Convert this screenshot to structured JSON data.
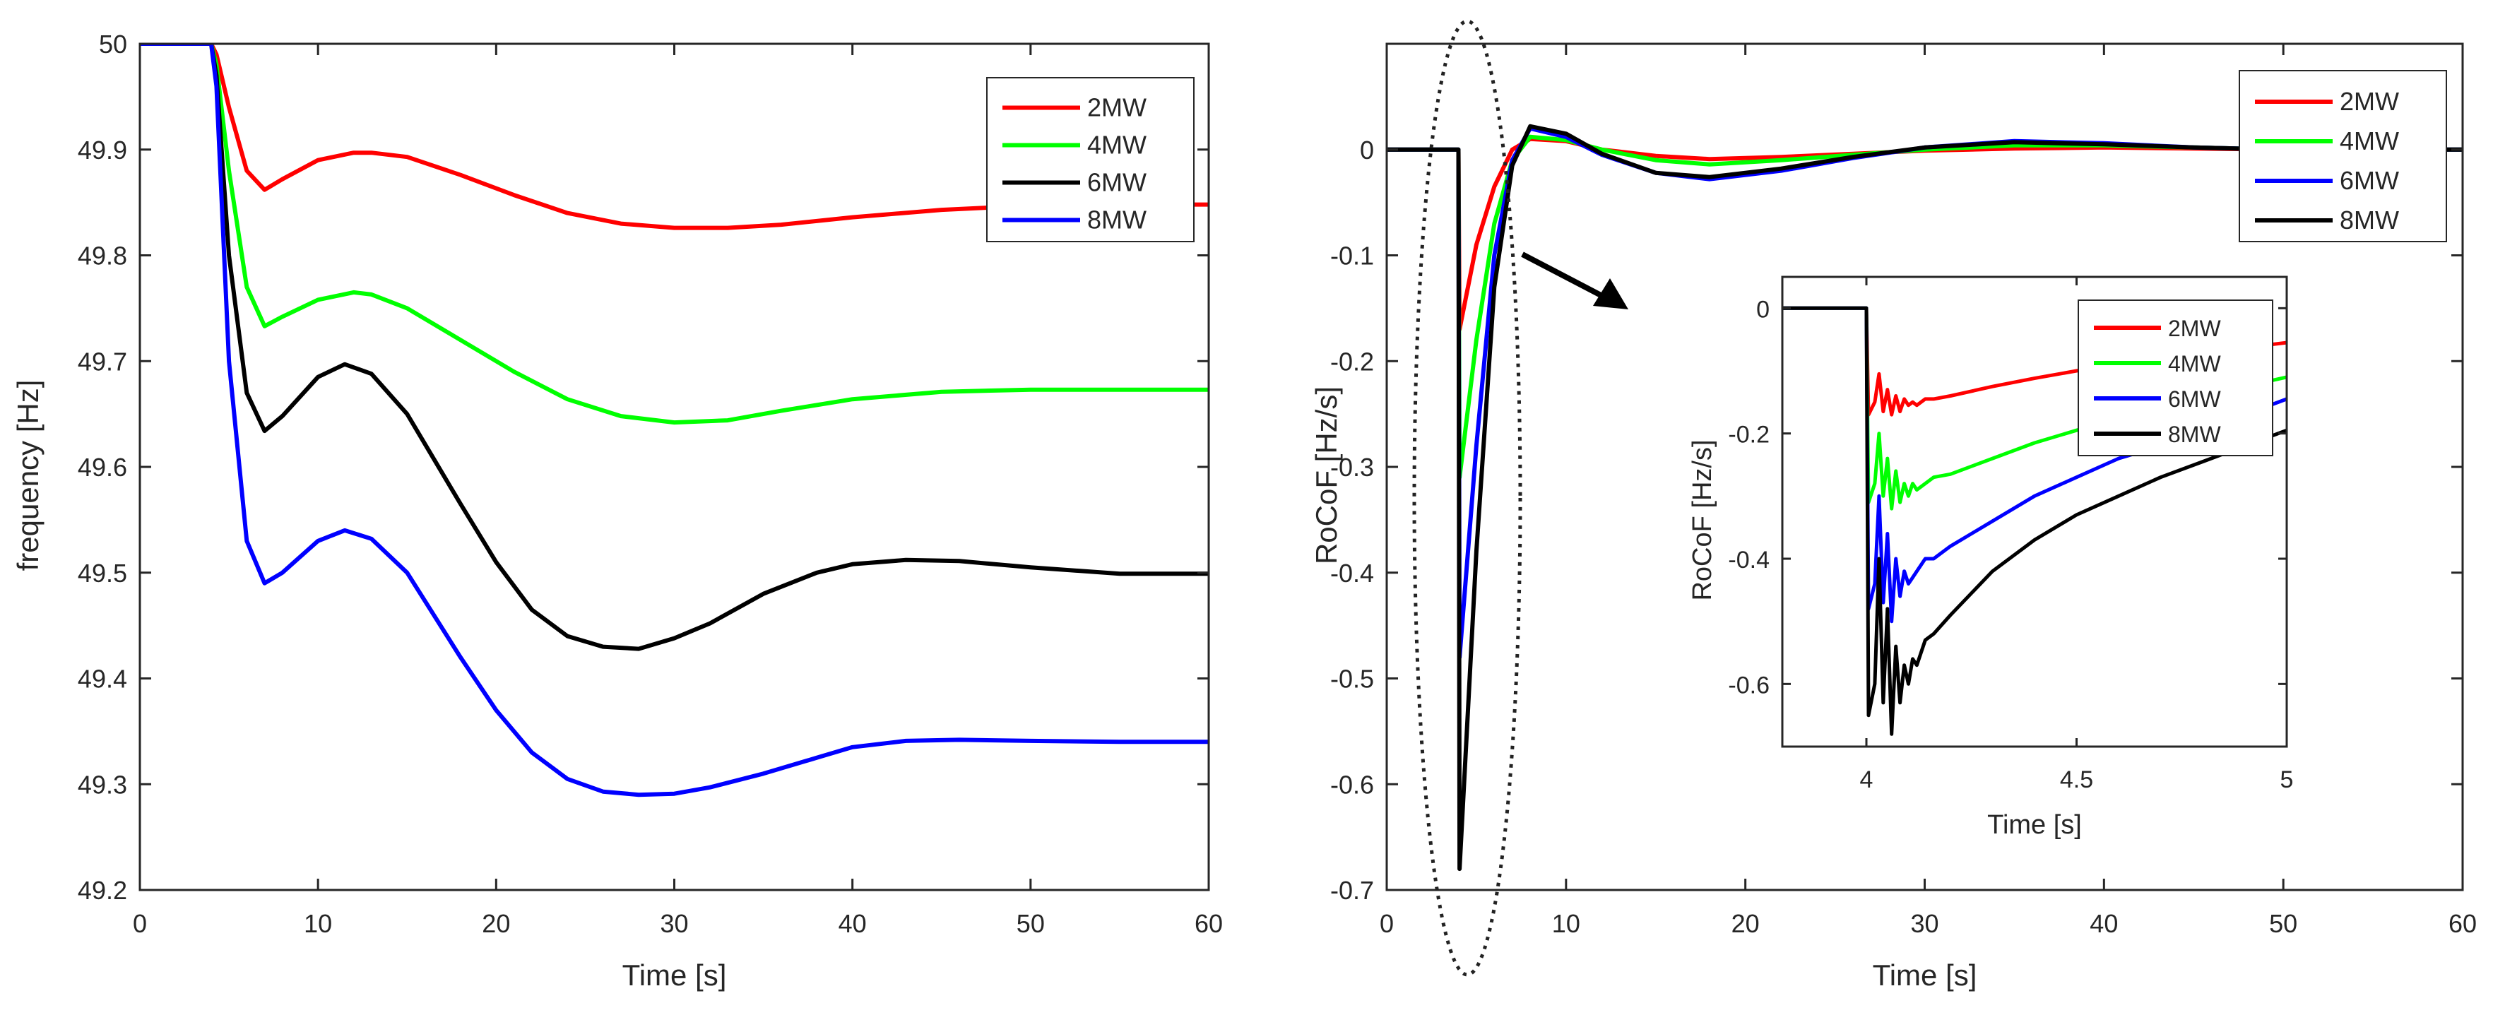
{
  "chart_data": [
    {
      "type": "line",
      "panel": "frequency",
      "xlabel": "Time [s]",
      "ylabel": "frequency [Hz]",
      "xlim": [
        0,
        60
      ],
      "ylim": [
        49.2,
        50
      ],
      "xticks": [
        0,
        10,
        20,
        30,
        40,
        50,
        60
      ],
      "xtick_labels": [
        "0",
        "10",
        "20",
        "30",
        "40",
        "50",
        "60"
      ],
      "yticks": [
        49.2,
        49.3,
        49.4,
        49.5,
        49.6,
        49.7,
        49.8,
        49.9,
        50
      ],
      "ytick_labels": [
        "49.2",
        "49.3",
        "49.4",
        "49.5",
        "49.6",
        "49.7",
        "49.8",
        "49.9",
        "50"
      ],
      "legend": "top-right",
      "grid": false,
      "series": [
        {
          "name": "2MW",
          "color": "#ff0000",
          "x": [
            0,
            4,
            4.3,
            5,
            6,
            7,
            8,
            10,
            12,
            13,
            15,
            18,
            21,
            24,
            27,
            30,
            33,
            36,
            40,
            45,
            50,
            55,
            60
          ],
          "y": [
            50,
            50,
            49.99,
            49.94,
            49.88,
            49.862,
            49.872,
            49.89,
            49.897,
            49.897,
            49.893,
            49.876,
            49.857,
            49.84,
            49.83,
            49.826,
            49.826,
            49.829,
            49.836,
            49.843,
            49.847,
            49.848,
            49.848
          ]
        },
        {
          "name": "4MW",
          "color": "#00ff00",
          "x": [
            0,
            4,
            4.3,
            5,
            6,
            7,
            8,
            10,
            12,
            13,
            15,
            18,
            21,
            24,
            27,
            30,
            33,
            36,
            40,
            45,
            50,
            55,
            60
          ],
          "y": [
            50,
            50,
            49.98,
            49.88,
            49.77,
            49.733,
            49.742,
            49.758,
            49.765,
            49.763,
            49.75,
            49.72,
            49.69,
            49.664,
            49.648,
            49.642,
            49.644,
            49.653,
            49.664,
            49.671,
            49.673,
            49.673,
            49.673
          ]
        },
        {
          "name": "6MW",
          "color": "#000000",
          "x": [
            0,
            4,
            4.3,
            5,
            6,
            7,
            8,
            10,
            11.5,
            13,
            15,
            18,
            20,
            22,
            24,
            26,
            28,
            30,
            32,
            35,
            38,
            40,
            43,
            46,
            50,
            55,
            60
          ],
          "y": [
            50,
            50,
            49.97,
            49.8,
            49.67,
            49.634,
            49.648,
            49.685,
            49.697,
            49.688,
            49.65,
            49.565,
            49.51,
            49.465,
            49.44,
            49.43,
            49.428,
            49.438,
            49.452,
            49.48,
            49.5,
            49.508,
            49.512,
            49.511,
            49.505,
            49.499,
            49.499
          ]
        },
        {
          "name": "8MW",
          "color": "#0000ff",
          "x": [
            0,
            4,
            4.3,
            5,
            6,
            7,
            8,
            10,
            11.5,
            13,
            15,
            18,
            20,
            22,
            24,
            26,
            28,
            30,
            32,
            35,
            38,
            40,
            43,
            46,
            50,
            55,
            60
          ],
          "y": [
            50,
            50,
            49.96,
            49.7,
            49.53,
            49.49,
            49.5,
            49.53,
            49.54,
            49.532,
            49.5,
            49.42,
            49.37,
            49.33,
            49.305,
            49.293,
            49.29,
            49.291,
            49.297,
            49.31,
            49.325,
            49.335,
            49.341,
            49.342,
            49.341,
            49.34,
            49.34
          ]
        }
      ]
    },
    {
      "type": "line",
      "panel": "rocof",
      "xlabel": "Time [s]",
      "ylabel": "RoCoF [Hz/s]",
      "xlim": [
        0,
        60
      ],
      "ylim": [
        -0.7,
        0.1
      ],
      "xticks": [
        0,
        10,
        20,
        30,
        40,
        50,
        60
      ],
      "xtick_labels": [
        "0",
        "10",
        "20",
        "30",
        "40",
        "50",
        "60"
      ],
      "yticks": [
        -0.7,
        -0.6,
        -0.5,
        -0.4,
        -0.3,
        -0.2,
        -0.1,
        0
      ],
      "ytick_labels": [
        "-0.7",
        "-0.6",
        "-0.5",
        "-0.4",
        "-0.3",
        "-0.2",
        "-0.1",
        "0"
      ],
      "legend": "top-right",
      "grid": false,
      "annotations": [
        "dotted ellipse around the initial RoCoF dip at t≈4 s",
        "arrow pointing to zoomed inset"
      ],
      "series": [
        {
          "name": "2MW",
          "color": "#ff0000",
          "x": [
            0,
            3.99,
            4.0,
            4.06,
            5,
            6,
            7,
            8,
            10,
            12,
            15,
            18,
            22,
            26,
            30,
            35,
            40,
            45,
            50,
            55,
            60
          ],
          "y": [
            0,
            0,
            0,
            -0.17,
            -0.09,
            -0.035,
            0,
            0.01,
            0.008,
            0.0,
            -0.006,
            -0.009,
            -0.007,
            -0.004,
            -0.001,
            0.001,
            0.002,
            0.001,
            0,
            0,
            0
          ]
        },
        {
          "name": "4MW",
          "color": "#00ff00",
          "x": [
            0,
            3.99,
            4.0,
            4.06,
            5,
            6,
            7,
            8,
            10,
            12,
            15,
            18,
            22,
            26,
            30,
            35,
            40,
            45,
            50,
            55,
            60
          ],
          "y": [
            0,
            0,
            0,
            -0.31,
            -0.18,
            -0.07,
            -0.01,
            0.012,
            0.009,
            0.0,
            -0.01,
            -0.014,
            -0.01,
            -0.005,
            0.0,
            0.004,
            0.004,
            0.002,
            0,
            0,
            0
          ]
        },
        {
          "name": "6MW",
          "color": "#0000ff",
          "x": [
            0,
            3.99,
            4.0,
            4.06,
            5,
            6,
            7,
            8,
            10,
            12,
            15,
            18,
            22,
            26,
            30,
            35,
            40,
            45,
            50,
            55,
            60
          ],
          "y": [
            0,
            0,
            0,
            -0.48,
            -0.28,
            -0.1,
            -0.01,
            0.02,
            0.012,
            -0.005,
            -0.022,
            -0.028,
            -0.02,
            -0.008,
            0.002,
            0.008,
            0.006,
            0.002,
            0,
            0,
            0
          ]
        },
        {
          "name": "8MW",
          "color": "#000000",
          "x": [
            0,
            3.99,
            4.0,
            4.06,
            5,
            6,
            7,
            8,
            10,
            12,
            15,
            18,
            22,
            26,
            30,
            35,
            40,
            45,
            50,
            55,
            60
          ],
          "y": [
            0,
            0,
            0,
            -0.68,
            -0.38,
            -0.13,
            -0.015,
            0.022,
            0.015,
            -0.004,
            -0.022,
            -0.026,
            -0.018,
            -0.007,
            0.002,
            0.007,
            0.005,
            0.002,
            0,
            0,
            0
          ]
        }
      ]
    },
    {
      "type": "line",
      "panel": "rocof-inset",
      "xlabel": "Time [s]",
      "ylabel": "RoCoF [Hz/s]",
      "xlim": [
        3.8,
        5
      ],
      "ylim": [
        -0.7,
        0.05
      ],
      "xticks": [
        4,
        4.5,
        5
      ],
      "xtick_labels": [
        "4",
        "4.5",
        "5"
      ],
      "yticks": [
        -0.6,
        -0.4,
        -0.2,
        0
      ],
      "ytick_labels": [
        "-0.6",
        "-0.4",
        "-0.2",
        "0"
      ],
      "legend": "top-right",
      "grid": false,
      "series": [
        {
          "name": "2MW",
          "color": "#ff0000",
          "x": [
            3.8,
            4.0,
            4.005,
            4.02,
            4.03,
            4.04,
            4.05,
            4.06,
            4.07,
            4.08,
            4.09,
            4.1,
            4.11,
            4.12,
            4.14,
            4.16,
            4.2,
            4.3,
            4.4,
            4.5,
            4.6,
            4.7,
            4.8,
            4.9,
            5.0
          ],
          "y": [
            0,
            0,
            -0.17,
            -0.15,
            -0.105,
            -0.165,
            -0.13,
            -0.17,
            -0.14,
            -0.165,
            -0.145,
            -0.155,
            -0.15,
            -0.155,
            -0.145,
            -0.145,
            -0.14,
            -0.125,
            -0.112,
            -0.1,
            -0.09,
            -0.08,
            -0.07,
            -0.063,
            -0.055
          ]
        },
        {
          "name": "4MW",
          "color": "#00ff00",
          "x": [
            3.8,
            4.0,
            4.005,
            4.02,
            4.03,
            4.04,
            4.05,
            4.06,
            4.07,
            4.08,
            4.09,
            4.1,
            4.11,
            4.12,
            4.14,
            4.16,
            4.2,
            4.3,
            4.4,
            4.5,
            4.6,
            4.7,
            4.8,
            4.9,
            5.0
          ],
          "y": [
            0,
            0,
            -0.31,
            -0.28,
            -0.2,
            -0.3,
            -0.24,
            -0.32,
            -0.26,
            -0.31,
            -0.28,
            -0.3,
            -0.28,
            -0.29,
            -0.28,
            -0.27,
            -0.265,
            -0.24,
            -0.215,
            -0.195,
            -0.175,
            -0.16,
            -0.14,
            -0.125,
            -0.11
          ]
        },
        {
          "name": "6MW",
          "color": "#0000ff",
          "x": [
            3.8,
            4.0,
            4.005,
            4.02,
            4.03,
            4.04,
            4.05,
            4.06,
            4.07,
            4.08,
            4.09,
            4.1,
            4.11,
            4.12,
            4.14,
            4.16,
            4.2,
            4.3,
            4.4,
            4.5,
            4.6,
            4.7,
            4.8,
            4.9,
            5.0
          ],
          "y": [
            0,
            0,
            -0.48,
            -0.44,
            -0.3,
            -0.47,
            -0.36,
            -0.5,
            -0.4,
            -0.46,
            -0.42,
            -0.44,
            -0.43,
            -0.42,
            -0.4,
            -0.4,
            -0.38,
            -0.34,
            -0.3,
            -0.27,
            -0.24,
            -0.22,
            -0.19,
            -0.17,
            -0.145
          ]
        },
        {
          "name": "8MW",
          "color": "#000000",
          "x": [
            3.8,
            4.0,
            4.005,
            4.02,
            4.03,
            4.04,
            4.05,
            4.06,
            4.07,
            4.08,
            4.09,
            4.1,
            4.11,
            4.12,
            4.14,
            4.16,
            4.2,
            4.3,
            4.4,
            4.5,
            4.6,
            4.7,
            4.8,
            4.9,
            5.0
          ],
          "y": [
            0,
            0,
            -0.65,
            -0.6,
            -0.4,
            -0.63,
            -0.48,
            -0.68,
            -0.54,
            -0.63,
            -0.57,
            -0.6,
            -0.56,
            -0.57,
            -0.53,
            -0.52,
            -0.49,
            -0.42,
            -0.37,
            -0.33,
            -0.3,
            -0.27,
            -0.245,
            -0.22,
            -0.195
          ]
        }
      ]
    }
  ]
}
